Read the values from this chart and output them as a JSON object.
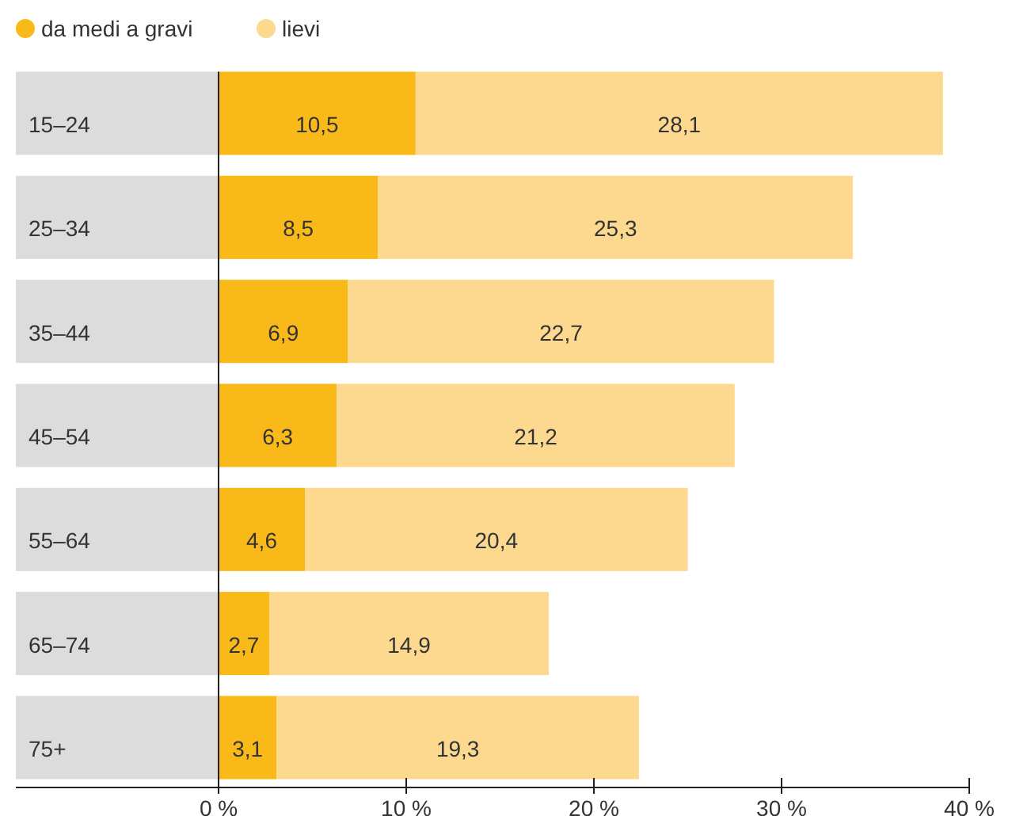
{
  "chart_data": {
    "type": "bar",
    "orientation": "horizontal",
    "stacked": true,
    "categories": [
      "15–24",
      "25–34",
      "35–44",
      "45–54",
      "55–64",
      "65–74",
      "75+"
    ],
    "series": [
      {
        "name": "da medi a gravi",
        "color": "#f9b918",
        "values": [
          10.5,
          8.5,
          6.9,
          6.3,
          4.6,
          2.7,
          3.1
        ],
        "value_labels": [
          "10,5",
          "8,5",
          "6,9",
          "6,3",
          "4,6",
          "2,7",
          "3,1"
        ]
      },
      {
        "name": "lievi",
        "color": "#fdd98f",
        "values": [
          28.1,
          25.3,
          22.7,
          21.2,
          20.4,
          14.9,
          19.3
        ],
        "value_labels": [
          "28,1",
          "25,3",
          "22,7",
          "21,2",
          "20,4",
          "14,9",
          "19,3"
        ]
      }
    ],
    "xlim": [
      0,
      40
    ],
    "xticks": [
      {
        "value": 0,
        "label": "0 %"
      },
      {
        "value": 10,
        "label": "10 %"
      },
      {
        "value": 20,
        "label": "20 %"
      },
      {
        "value": 30,
        "label": "30 %"
      },
      {
        "value": 40,
        "label": "40 %"
      }
    ],
    "grid": false,
    "legend": "top left"
  }
}
